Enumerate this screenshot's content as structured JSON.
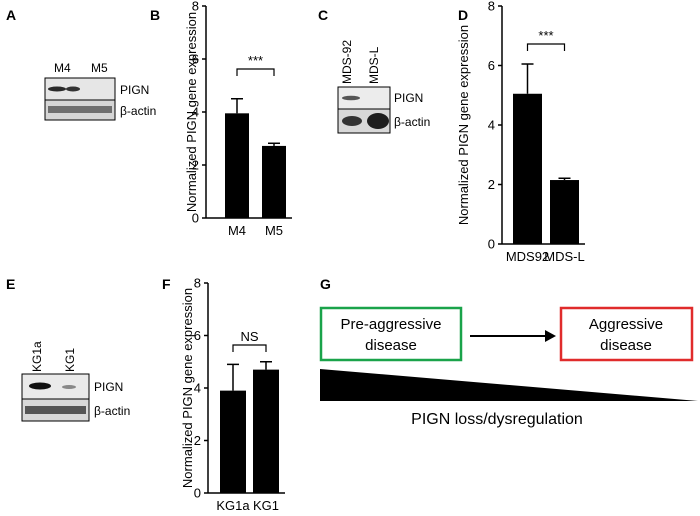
{
  "panels": {
    "A": {
      "label": "A",
      "lanes": [
        "M4",
        "M5"
      ],
      "rows": [
        {
          "label": "PIGN"
        },
        {
          "label": "β-actin"
        }
      ]
    },
    "C": {
      "label": "C",
      "lanes": [
        "MDS-92",
        "MDS-L"
      ],
      "rows": [
        {
          "label": "PIGN"
        },
        {
          "label": "β-actin"
        }
      ]
    },
    "E": {
      "label": "E",
      "lanes": [
        "KG1a",
        "KG1"
      ],
      "rows": [
        {
          "label": "PIGN"
        },
        {
          "label": "β-actin"
        }
      ]
    },
    "G": {
      "label": "G",
      "box_left": [
        "Pre-aggressive",
        "disease"
      ],
      "box_right": [
        "Aggressive",
        "disease"
      ],
      "caption": "PIGN loss/dysregulation",
      "colors": {
        "left_box": "#1aa34a",
        "right_box": "#e02b2b"
      }
    }
  },
  "chart_data": [
    {
      "panel": "B",
      "type": "bar",
      "categories": [
        "M4",
        "M5"
      ],
      "values": [
        3.95,
        2.72
      ],
      "errors": [
        0.55,
        0.1
      ],
      "ylabel": "Normalized PIGN gene expression",
      "ylim": [
        0,
        8
      ],
      "yticks": [
        "0",
        "2",
        "4",
        "6",
        "8"
      ],
      "significance": "***"
    },
    {
      "panel": "D",
      "type": "bar",
      "categories": [
        "MDS92",
        "MDS-L"
      ],
      "values": [
        5.05,
        2.15
      ],
      "errors": [
        1.0,
        0.06
      ],
      "ylabel": "Normalized PIGN gene expression",
      "ylim": [
        0,
        8
      ],
      "yticks": [
        "0",
        "2",
        "4",
        "6",
        "8"
      ],
      "significance": "***"
    },
    {
      "panel": "F",
      "type": "bar",
      "categories": [
        "KG1a",
        "KG1"
      ],
      "values": [
        3.9,
        4.7
      ],
      "errors": [
        1.0,
        0.3
      ],
      "ylabel": "Normalized PIGN gene expression",
      "ylim": [
        0,
        8
      ],
      "yticks": [
        "0",
        "2",
        "4",
        "6",
        "8"
      ],
      "significance": "NS"
    }
  ]
}
